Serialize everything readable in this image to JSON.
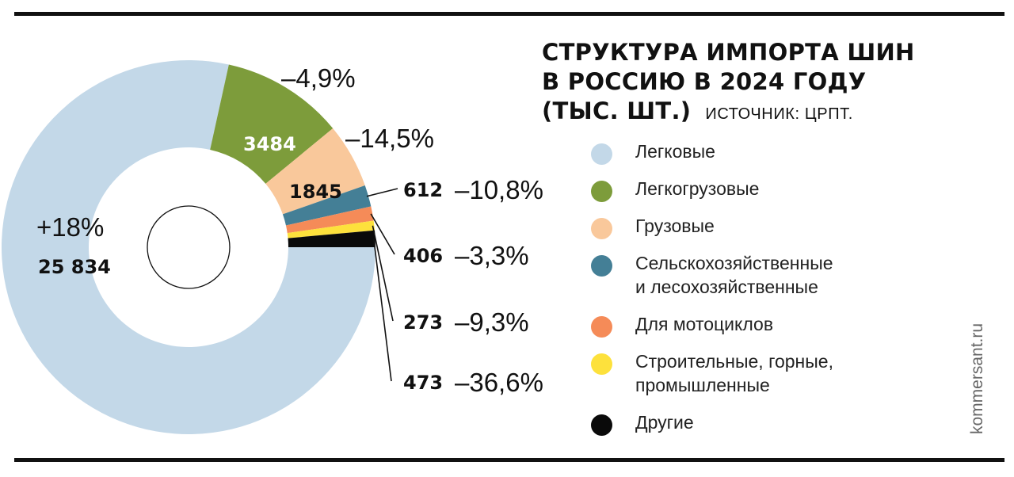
{
  "title_lines": [
    "СТРУКТУРА ИМПОРТА ШИН",
    "В РОССИЮ В 2024 ГОДУ",
    "(ТЫС. ШТ.)"
  ],
  "source": "ИСТОЧНИК: ЦРПТ.",
  "credit": "kommersant.ru",
  "chart_data": {
    "type": "pie",
    "donut": true,
    "unit": "тыс. шт.",
    "slices": [
      {
        "label": "Легковые",
        "value": 25834,
        "value_text": "25 834",
        "change": "+18%",
        "color": "#c3d8e8"
      },
      {
        "label": "Легкогрузовые",
        "value": 3484,
        "value_text": "3484",
        "change": "–4,9%",
        "color": "#7d9c3b"
      },
      {
        "label": "Грузовые",
        "value": 1845,
        "value_text": "1845",
        "change": "–14,5%",
        "color": "#f9c89b"
      },
      {
        "label": "Сельскохозяйственные и лесохозяйственные",
        "value": 612,
        "value_text": "612",
        "change": "–10,8%",
        "color": "#447f96"
      },
      {
        "label": "Для мотоциклов",
        "value": 406,
        "value_text": "406",
        "change": "–3,3%",
        "color": "#f58b58"
      },
      {
        "label": "Строительные, горные, промышленные",
        "value": 273,
        "value_text": "273",
        "change": "–9,3%",
        "color": "#fde13c"
      },
      {
        "label": "Другие",
        "value": 473,
        "value_text": "473",
        "change": "–36,6%",
        "color": "#0a0a0a"
      }
    ],
    "legend": [
      {
        "lines": [
          "Легковые"
        ],
        "color": "#c3d8e8"
      },
      {
        "lines": [
          "Легкогрузовые"
        ],
        "color": "#7d9c3b"
      },
      {
        "lines": [
          "Грузовые"
        ],
        "color": "#f9c89b"
      },
      {
        "lines": [
          "Сельскохозяйственные",
          "и лесохозяйственные"
        ],
        "color": "#447f96"
      },
      {
        "lines": [
          "Для мотоциклов"
        ],
        "color": "#f58b58"
      },
      {
        "lines": [
          "Строительные, горные,",
          "промышленные"
        ],
        "color": "#fde13c"
      },
      {
        "lines": [
          "Другие"
        ],
        "color": "#0a0a0a"
      }
    ],
    "legend_placement": "right"
  }
}
